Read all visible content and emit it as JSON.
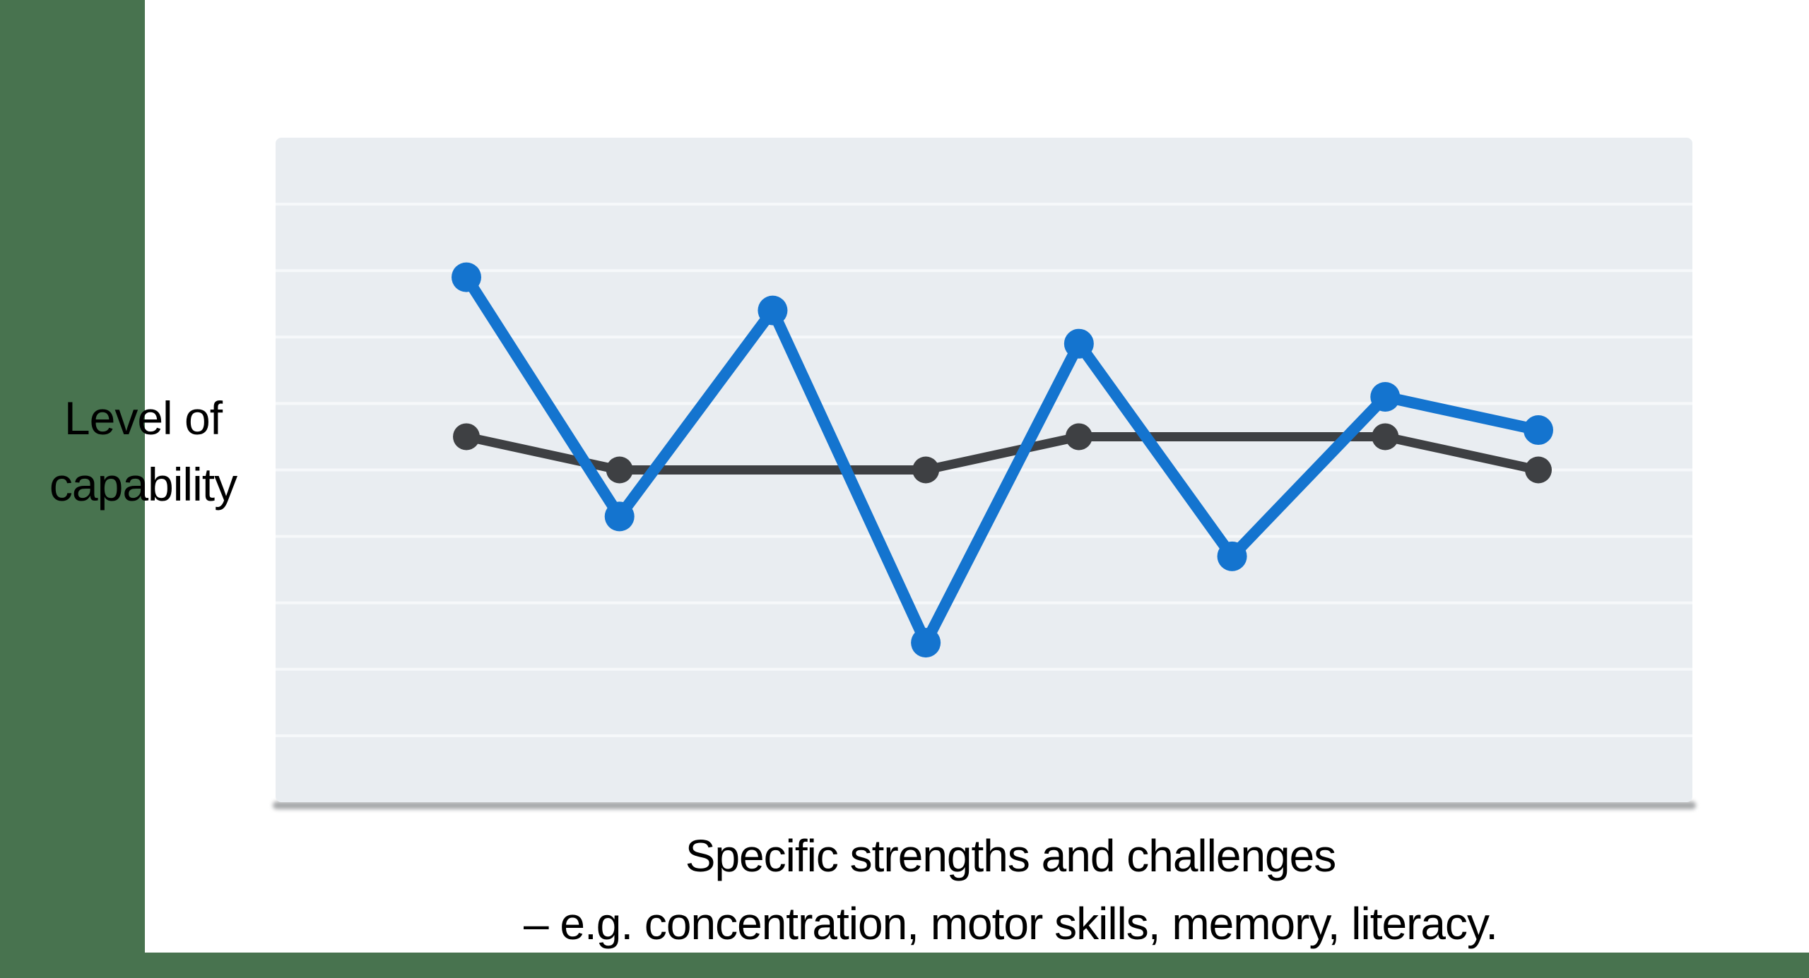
{
  "slide": {
    "background": "#ffffff",
    "accent_bar_color": "#48734f"
  },
  "chart_data": {
    "type": "line",
    "title": "",
    "ylabel": "Level of capability",
    "ylabel_lines": [
      "Level of",
      "capability"
    ],
    "xlabel": "Specific strengths and challenges – e.g. concentration, motor skills, memory, literacy.",
    "xlabel_lines": [
      "Specific strengths and challenges",
      "– e.g. concentration, motor skills, memory, literacy."
    ],
    "x": [
      1,
      2,
      3,
      4,
      5,
      6,
      7,
      8
    ],
    "series": [
      {
        "name": "flat-dark-series",
        "color": "#3e4043",
        "x": [
          1,
          2,
          4,
          5,
          7,
          8
        ],
        "values": [
          5.5,
          5.0,
          5.0,
          5.5,
          5.5,
          5.0
        ],
        "line_width": 13,
        "point_radius": 19
      },
      {
        "name": "spiky-blue-series",
        "color": "#1474cf",
        "x": [
          1,
          2,
          3,
          4,
          5,
          6,
          7,
          8
        ],
        "values": [
          7.9,
          4.3,
          7.4,
          2.4,
          6.9,
          3.7,
          6.1,
          5.6
        ],
        "line_width": 16,
        "point_radius": 21
      }
    ],
    "ylim": [
      0,
      10
    ],
    "grid": {
      "horizontal": true,
      "step": 1,
      "color": "#f6f8fa",
      "line_width": 4
    },
    "plot_background": "#e9edf1",
    "legend": "none",
    "axis_tick_labels": "none"
  }
}
